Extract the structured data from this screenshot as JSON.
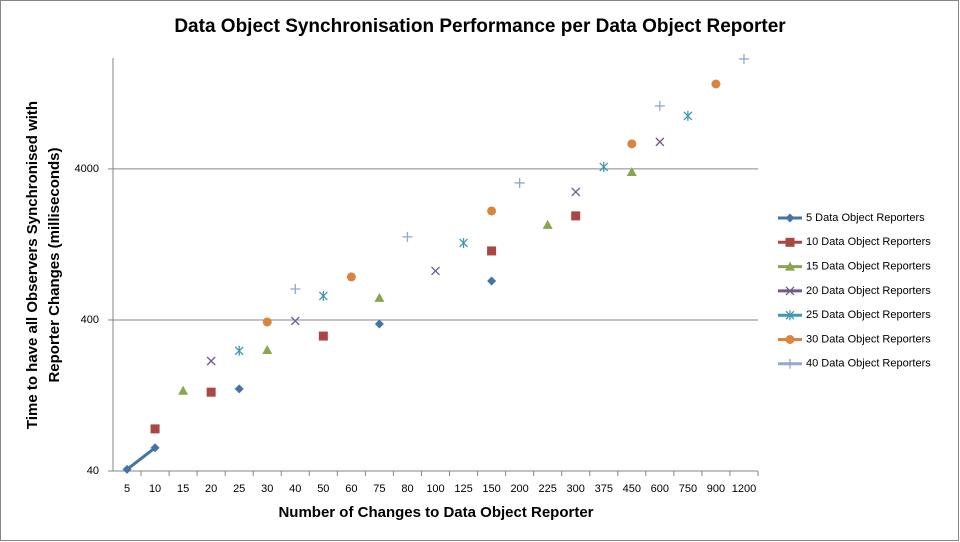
{
  "chart_data": {
    "type": "line",
    "title": "Data Object Synchronisation Performance per Data Object Reporter",
    "xlabel": "Number of Changes to Data Object Reporter",
    "ylabel": [
      "Time to have all Observers Synchronised with",
      "Reporter Changes (milliseconds)"
    ],
    "categories": [
      "5",
      "10",
      "15",
      "20",
      "25",
      "30",
      "40",
      "50",
      "60",
      "75",
      "80",
      "100",
      "125",
      "150",
      "200",
      "225",
      "300",
      "375",
      "450",
      "600",
      "750",
      "900",
      "1200"
    ],
    "ylog": true,
    "ylim": [
      40,
      21700
    ],
    "yticks": [
      40,
      400,
      4000
    ],
    "grid": true,
    "legend": "right",
    "series": [
      {
        "name": "5 Data Object Reporters",
        "color": "#4572a7",
        "marker": "diamond",
        "values": [
          41,
          57,
          null,
          null,
          140,
          null,
          null,
          null,
          null,
          376,
          null,
          null,
          null,
          725,
          null,
          null,
          null,
          null,
          null,
          null,
          null,
          null,
          null
        ]
      },
      {
        "name": "10 Data Object Reporters",
        "color": "#aa4643",
        "marker": "square",
        "values": [
          null,
          76,
          null,
          133,
          null,
          null,
          null,
          313,
          null,
          null,
          null,
          null,
          null,
          1146,
          null,
          null,
          1955,
          null,
          null,
          null,
          null,
          null,
          null
        ]
      },
      {
        "name": "15 Data Object Reporters",
        "color": "#89a54e",
        "marker": "triangle",
        "values": [
          null,
          null,
          136,
          null,
          null,
          253,
          null,
          null,
          null,
          560,
          null,
          null,
          null,
          null,
          null,
          1704,
          null,
          null,
          3820,
          null,
          null,
          null,
          null
        ]
      },
      {
        "name": "20 Data Object Reporters",
        "color": "#71588f",
        "marker": "x",
        "values": [
          null,
          null,
          null,
          214,
          null,
          null,
          394,
          null,
          null,
          null,
          null,
          845,
          null,
          null,
          null,
          null,
          2817,
          null,
          null,
          6040,
          null,
          null,
          null
        ]
      },
      {
        "name": "25 Data Object Reporters",
        "color": "#4198af",
        "marker": "star",
        "values": [
          null,
          null,
          null,
          null,
          250,
          null,
          null,
          577,
          null,
          null,
          null,
          null,
          1294,
          null,
          null,
          null,
          null,
          4123,
          null,
          null,
          8980,
          null,
          null
        ]
      },
      {
        "name": "30 Data Object Reporters",
        "color": "#db843d",
        "marker": "circle",
        "values": [
          null,
          null,
          null,
          null,
          null,
          388,
          null,
          null,
          771,
          null,
          null,
          null,
          null,
          2108,
          null,
          null,
          null,
          null,
          5860,
          null,
          null,
          14600,
          null
        ]
      },
      {
        "name": "40 Data Object Reporters",
        "color": "#93a9cf",
        "marker": "plus",
        "values": [
          null,
          null,
          null,
          null,
          null,
          null,
          641,
          null,
          null,
          null,
          1419,
          null,
          null,
          null,
          3230,
          null,
          null,
          null,
          null,
          10450,
          null,
          null,
          21400
        ]
      }
    ]
  }
}
